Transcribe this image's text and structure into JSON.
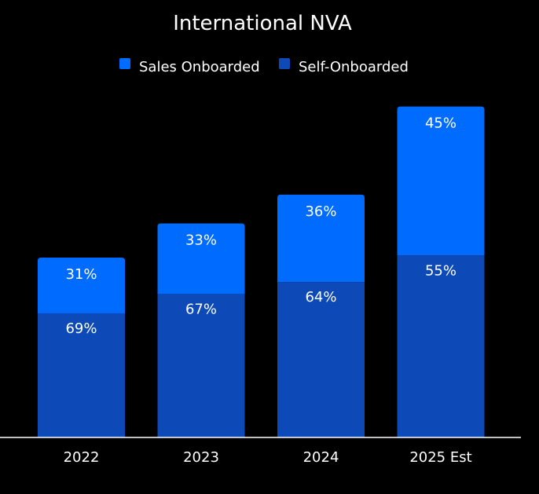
{
  "chart_data": {
    "type": "bar",
    "stacked": true,
    "title": "International NVA",
    "categories": [
      "2022",
      "2023",
      "2024",
      "2025 Est"
    ],
    "series": [
      {
        "name": "Sales Onboarded",
        "color": "#006bff",
        "values": [
          31,
          33,
          36,
          45
        ],
        "labels": [
          "31%",
          "33%",
          "36%",
          "45%"
        ]
      },
      {
        "name": "Self-Onboarded",
        "color": "#0d4ab8",
        "values": [
          69,
          67,
          64,
          55
        ],
        "labels": [
          "69%",
          "67%",
          "64%",
          "55%"
        ]
      }
    ],
    "totals_relative": [
      1.0,
      1.19,
      1.35,
      1.84
    ],
    "legend_position": "top",
    "xlabel": "",
    "ylabel": "",
    "background": "#000000",
    "text_color": "#ffffff",
    "axis_color": "#ffffff"
  }
}
